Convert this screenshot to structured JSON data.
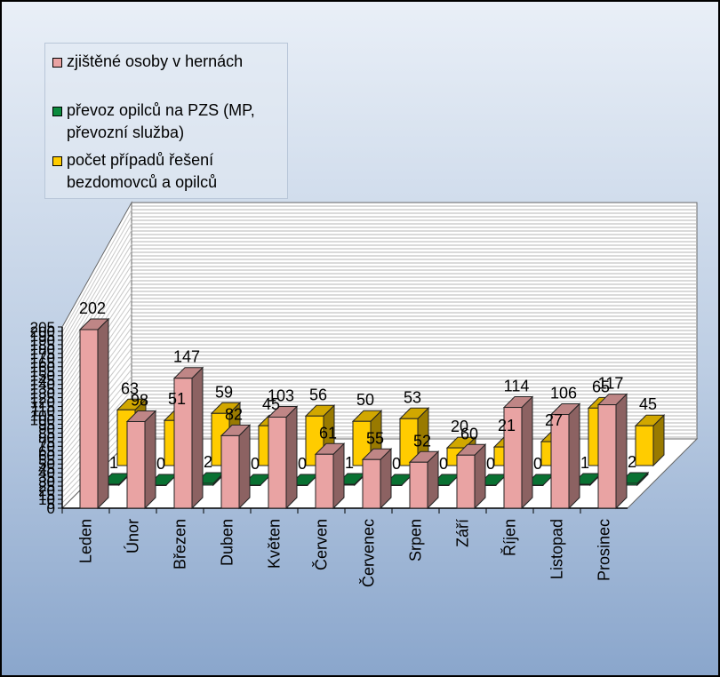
{
  "chart_data": {
    "type": "bar",
    "categories": [
      "Leden",
      "Únor",
      "Březen",
      "Duben",
      "Květen",
      "Červen",
      "Červenec",
      "Srpen",
      "Září",
      "Říjen",
      "Listopad",
      "Prosinec"
    ],
    "series": [
      {
        "name": "zjištěné osoby v hernách",
        "color": "#e9a3a3",
        "values": [
          202,
          98,
          147,
          82,
          103,
          61,
          55,
          52,
          60,
          114,
          106,
          117
        ]
      },
      {
        "name": "převoz opilců na PZS (MP, převozní služba)",
        "color": "#0b8a3d",
        "values": [
          1,
          0,
          2,
          0,
          0,
          1,
          0,
          0,
          0,
          0,
          1,
          2
        ]
      },
      {
        "name": "počet případů řešení bezdomovců a opilců",
        "color": "#ffcc00",
        "values": [
          63,
          51,
          59,
          45,
          56,
          50,
          53,
          20,
          21,
          27,
          65,
          45
        ]
      }
    ],
    "ylim": [
      0,
      205
    ],
    "three_d": true,
    "grid": true,
    "legend_position": "top-left"
  },
  "legend": {
    "items": [
      {
        "label": "zjištěné osoby v hernách",
        "color": "#e9a3a3"
      },
      {
        "label": "převoz opilců na PZS (MP, převozní služba)",
        "color": "#0b8a3d"
      },
      {
        "label": "počet případů řešení bezdomovců a opilců",
        "color": "#ffcc00"
      }
    ]
  }
}
